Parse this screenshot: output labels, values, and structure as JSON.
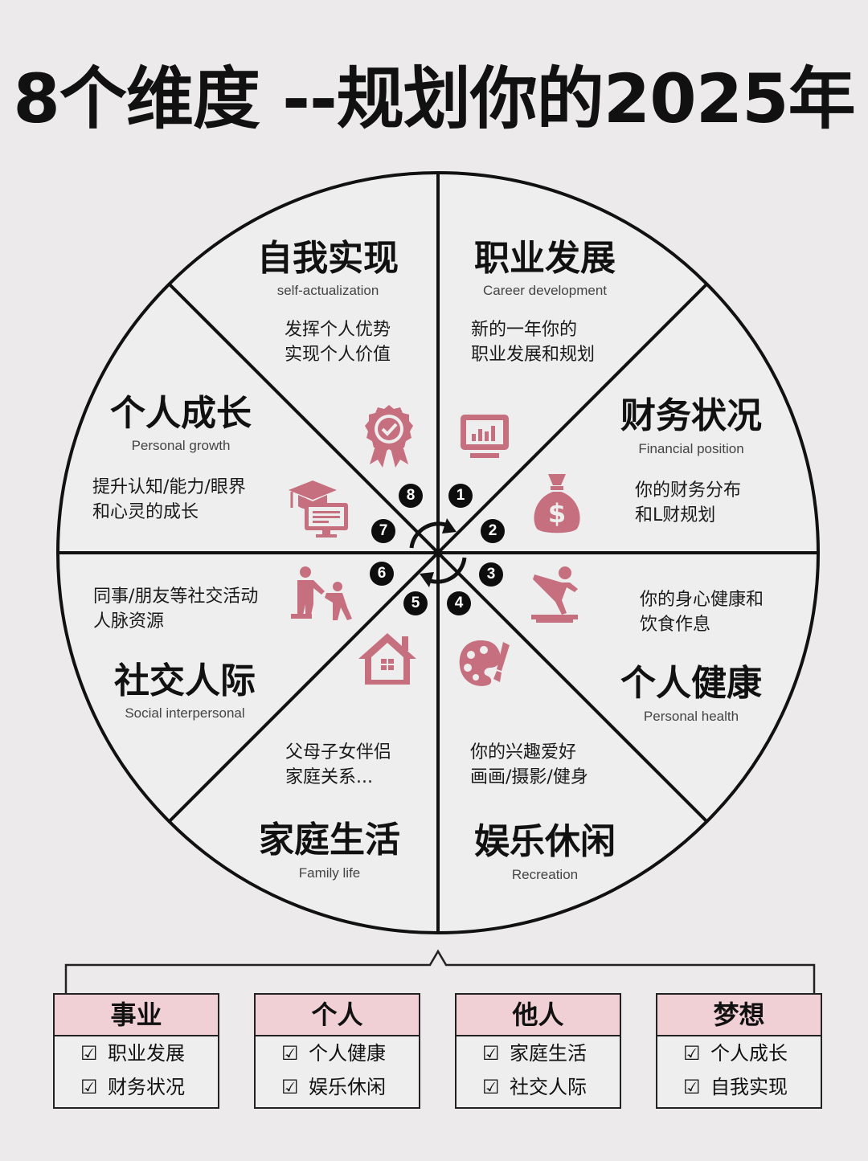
{
  "title": "8个维度 --规划你的2025年",
  "colors": {
    "accent": "#c66f7e",
    "box_header": "#f0d0d4",
    "line": "#111111"
  },
  "segments": [
    {
      "num": "1",
      "title": "职业发展",
      "subtitle": "Career development",
      "desc": [
        "新的一年你的",
        "职业发展和规划"
      ],
      "icon": "monitor-chart-icon"
    },
    {
      "num": "2",
      "title": "财务状况",
      "subtitle": "Financial position",
      "desc": [
        "你的财务分布",
        "和L财规划"
      ],
      "icon": "money-bag-icon"
    },
    {
      "num": "3",
      "title": "个人健康",
      "subtitle": "Personal health",
      "desc": [
        "你的身心健康和",
        "饮食作息"
      ],
      "icon": "exercise-icon"
    },
    {
      "num": "4",
      "title": "娱乐休闲",
      "subtitle": "Recreation",
      "desc": [
        "你的兴趣爱好",
        "画画/摄影/健身"
      ],
      "icon": "palette-icon"
    },
    {
      "num": "5",
      "title": "家庭生活",
      "subtitle": "Family life",
      "desc": [
        "父母子女伴侣",
        "家庭关系..."
      ],
      "icon": "house-icon"
    },
    {
      "num": "6",
      "title": "社交人际",
      "subtitle": "Social interpersonal",
      "desc": [
        "同事/朋友等社交活动",
        "人脉资源"
      ],
      "icon": "people-icon"
    },
    {
      "num": "7",
      "title": "个人成长",
      "subtitle": "Personal growth",
      "desc": [
        "提升认知/能力/眼界",
        "和心灵的成长"
      ],
      "icon": "graduation-icon"
    },
    {
      "num": "8",
      "title": "自我实现",
      "subtitle": "self-actualization",
      "desc": [
        "发挥个人优势",
        "实现个人价值"
      ],
      "icon": "badge-icon"
    }
  ],
  "categories": [
    {
      "title": "事业",
      "items": [
        "职业发展",
        "财务状况"
      ]
    },
    {
      "title": "个人",
      "items": [
        "个人健康",
        "娱乐休闲"
      ]
    },
    {
      "title": "他人",
      "items": [
        "家庭生活",
        "社交人际"
      ]
    },
    {
      "title": "梦想",
      "items": [
        "个人成长",
        "自我实现"
      ]
    }
  ],
  "check_mark": "☑"
}
